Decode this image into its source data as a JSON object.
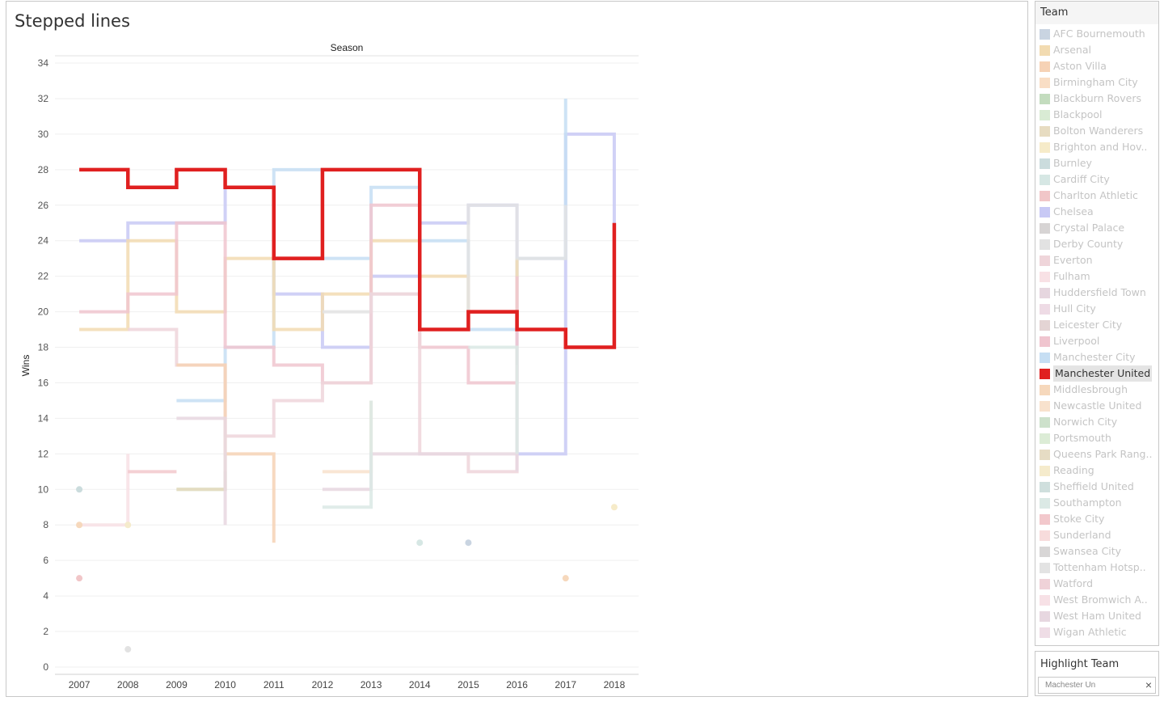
{
  "title": "Stepped lines",
  "legend": {
    "title": "Team",
    "items": [
      {
        "label": "AFC Bournemouth",
        "color": "#c9d4e1"
      },
      {
        "label": "Arsenal",
        "color": "#f2dbb1"
      },
      {
        "label": "Aston Villa",
        "color": "#f6d2b5"
      },
      {
        "label": "Birmingham City",
        "color": "#f9dec5"
      },
      {
        "label": "Blackburn Rovers",
        "color": "#c3dcbe"
      },
      {
        "label": "Blackpool",
        "color": "#d9ebd4"
      },
      {
        "label": "Bolton Wanderers",
        "color": "#e7dcc1"
      },
      {
        "label": "Brighton and Hov..",
        "color": "#f6ebc9"
      },
      {
        "label": "Burnley",
        "color": "#cbdcdd"
      },
      {
        "label": "Cardiff City",
        "color": "#d6e7e4"
      },
      {
        "label": "Charlton Athletic",
        "color": "#f1c6c8"
      },
      {
        "label": "Chelsea",
        "color": "#c8c9f5"
      },
      {
        "label": "Crystal Palace",
        "color": "#d7d4d4"
      },
      {
        "label": "Derby County",
        "color": "#e2e2e2"
      },
      {
        "label": "Everton",
        "color": "#efd5da"
      },
      {
        "label": "Fulham",
        "color": "#f8e1e5"
      },
      {
        "label": "Huddersfield Town",
        "color": "#e6d6df"
      },
      {
        "label": "Hull City",
        "color": "#eedbe5"
      },
      {
        "label": "Leicester City",
        "color": "#e4d4d4"
      },
      {
        "label": "Liverpool",
        "color": "#f0c5cf"
      },
      {
        "label": "Manchester City",
        "color": "#c6def3"
      },
      {
        "label": "Manchester United",
        "color": "#e02020"
      },
      {
        "label": "Middlesbrough",
        "color": "#f6d8bc"
      },
      {
        "label": "Newcastle United",
        "color": "#f8e2cd"
      },
      {
        "label": "Norwich City",
        "color": "#cde1cb"
      },
      {
        "label": "Portsmouth",
        "color": "#dcecd6"
      },
      {
        "label": "Queens Park Rang..",
        "color": "#e6dcc4"
      },
      {
        "label": "Reading",
        "color": "#f5ebcc"
      },
      {
        "label": "Sheffield United",
        "color": "#cfdfdd"
      },
      {
        "label": "Southampton",
        "color": "#dbe9e5"
      },
      {
        "label": "Stoke City",
        "color": "#f2c8cc"
      },
      {
        "label": "Sunderland",
        "color": "#f7dcdc"
      },
      {
        "label": "Swansea City",
        "color": "#d8d6d6"
      },
      {
        "label": "Tottenham Hotsp..",
        "color": "#e3e3e3"
      },
      {
        "label": "Watford",
        "color": "#efd2d8"
      },
      {
        "label": "West Bromwich A..",
        "color": "#f7e1e6"
      },
      {
        "label": "West Ham United",
        "color": "#e7d7e0"
      },
      {
        "label": "Wigan Athletic",
        "color": "#efdde6"
      }
    ],
    "selected": "Manchester United"
  },
  "highlight": {
    "title": "Highlight Team",
    "value": "Machester Un"
  },
  "chart_data": {
    "type": "line",
    "title": "Season",
    "xlabel": "",
    "ylabel": "Wins",
    "x": [
      2007,
      2008,
      2009,
      2010,
      2011,
      2012,
      2013,
      2014,
      2015,
      2016,
      2017,
      2018
    ],
    "yticks": [
      0,
      2,
      4,
      6,
      8,
      10,
      12,
      14,
      16,
      18,
      20,
      22,
      24,
      26,
      28,
      30,
      32,
      34
    ],
    "ylim": [
      0,
      34
    ],
    "step": "hv",
    "highlight_series": "Manchester United",
    "series": [
      {
        "name": "Manchester United",
        "color": "#e02020",
        "values": [
          28,
          27,
          28,
          27,
          23,
          28,
          28,
          19,
          20,
          19,
          18,
          25
        ]
      },
      {
        "name": "Chelsea",
        "color": "#c8c9f5",
        "values": [
          24,
          25,
          25,
          27,
          21,
          18,
          22,
          25,
          26,
          12,
          30,
          21
        ]
      },
      {
        "name": "Manchester City",
        "color": "#c6def3",
        "values": [
          null,
          null,
          15,
          18,
          28,
          23,
          27,
          24,
          19,
          23,
          32,
          null
        ]
      },
      {
        "name": "Arsenal",
        "color": "#f2dbb1",
        "values": [
          19,
          24,
          20,
          23,
          19,
          21,
          24,
          22,
          20,
          23,
          null,
          null
        ]
      },
      {
        "name": "Liverpool",
        "color": "#f0c5cf",
        "values": [
          20,
          21,
          25,
          18,
          17,
          16,
          26,
          18,
          16,
          22,
          null,
          null
        ]
      },
      {
        "name": "Tottenham Hotsp..",
        "color": "#e3e3e3",
        "values": [
          17,
          null,
          null,
          21,
          null,
          20,
          21,
          19,
          26,
          23,
          26,
          null
        ]
      },
      {
        "name": "Everton",
        "color": "#efd5da",
        "values": [
          null,
          19,
          17,
          13,
          15,
          16,
          21,
          12,
          11,
          17,
          null,
          null
        ]
      },
      {
        "name": "Aston Villa",
        "color": "#f6d2b5",
        "values": [
          16,
          null,
          17,
          12,
          7,
          null,
          10,
          null,
          null,
          null,
          null,
          null
        ]
      },
      {
        "name": "Blackburn Rovers",
        "color": "#c3dcbe",
        "values": [
          15,
          null,
          10,
          11,
          null,
          null,
          null,
          null,
          null,
          null,
          null,
          null
        ]
      },
      {
        "name": "Bolton Wanderers",
        "color": "#e7dcc1",
        "values": [
          16,
          null,
          10,
          12,
          null,
          null,
          null,
          null,
          null,
          null,
          null,
          null
        ]
      },
      {
        "name": "Newcastle United",
        "color": "#f8e2cd",
        "values": [
          11,
          null,
          null,
          12,
          null,
          11,
          15,
          null,
          9,
          null,
          12,
          null
        ]
      },
      {
        "name": "West Ham United",
        "color": "#e7d7e0",
        "values": [
          10,
          null,
          14,
          8,
          null,
          10,
          12,
          12,
          12,
          11,
          null,
          null
        ]
      },
      {
        "name": "Fulham",
        "color": "#f8e1e5",
        "values": [
          8,
          12,
          null,
          11,
          null,
          11,
          null,
          null,
          null,
          null,
          null,
          null
        ]
      },
      {
        "name": "Sunderland",
        "color": "#f7dcdc",
        "values": [
          11,
          null,
          null,
          12,
          null,
          null,
          10,
          null,
          null,
          null,
          null,
          null
        ]
      },
      {
        "name": "Stoke City",
        "color": "#f2c8cc",
        "values": [
          null,
          11,
          11,
          null,
          12,
          null,
          null,
          null,
          null,
          null,
          null,
          null
        ]
      },
      {
        "name": "Southampton",
        "color": "#dbe9e5",
        "values": [
          null,
          null,
          null,
          null,
          null,
          9,
          15,
          null,
          18,
          12,
          null,
          null
        ]
      },
      {
        "name": "Norwich City",
        "color": "#cde1cb",
        "values": [
          14,
          null,
          null,
          null,
          12,
          null,
          null,
          null,
          null,
          null,
          null,
          null
        ]
      },
      {
        "name": "Wigan Athletic",
        "color": "#efdde6",
        "values": [
          null,
          null,
          9,
          null,
          null,
          null,
          null,
          null,
          null,
          null,
          null,
          null
        ]
      },
      {
        "name": "Leicester City",
        "color": "#e4d4d4",
        "values": [
          null,
          null,
          null,
          null,
          null,
          null,
          null,
          null,
          null,
          null,
          null,
          null
        ]
      },
      {
        "name": "Derby County",
        "color": "#e2e2e2",
        "values": [
          1,
          null,
          null,
          null,
          null,
          null,
          null,
          null,
          null,
          null,
          null,
          null
        ]
      }
    ],
    "points": [
      {
        "team": "Burnley",
        "x": 2007,
        "y": 10,
        "color": "#cbdcdd"
      },
      {
        "team": "Middlesbrough",
        "x": 2007,
        "y": 8,
        "color": "#f6d8bc"
      },
      {
        "team": "Charlton Athletic",
        "x": 2007,
        "y": 5,
        "color": "#f1c6c8"
      },
      {
        "team": "Derby County",
        "x": 2008,
        "y": 1,
        "color": "#e2e2e2"
      },
      {
        "team": "Reading",
        "x": 2008,
        "y": 8,
        "color": "#f5ebcc"
      },
      {
        "team": "Cardiff City",
        "x": 2014,
        "y": 7,
        "color": "#d6e7e4"
      },
      {
        "team": "AFC Bournemouth",
        "x": 2015,
        "y": 7,
        "color": "#c9d4e1"
      },
      {
        "team": "Middlesbrough",
        "x": 2017,
        "y": 5,
        "color": "#f6d8bc"
      },
      {
        "team": "Brighton and Hov..",
        "x": 2018,
        "y": 9,
        "color": "#f6ebc9"
      }
    ]
  }
}
